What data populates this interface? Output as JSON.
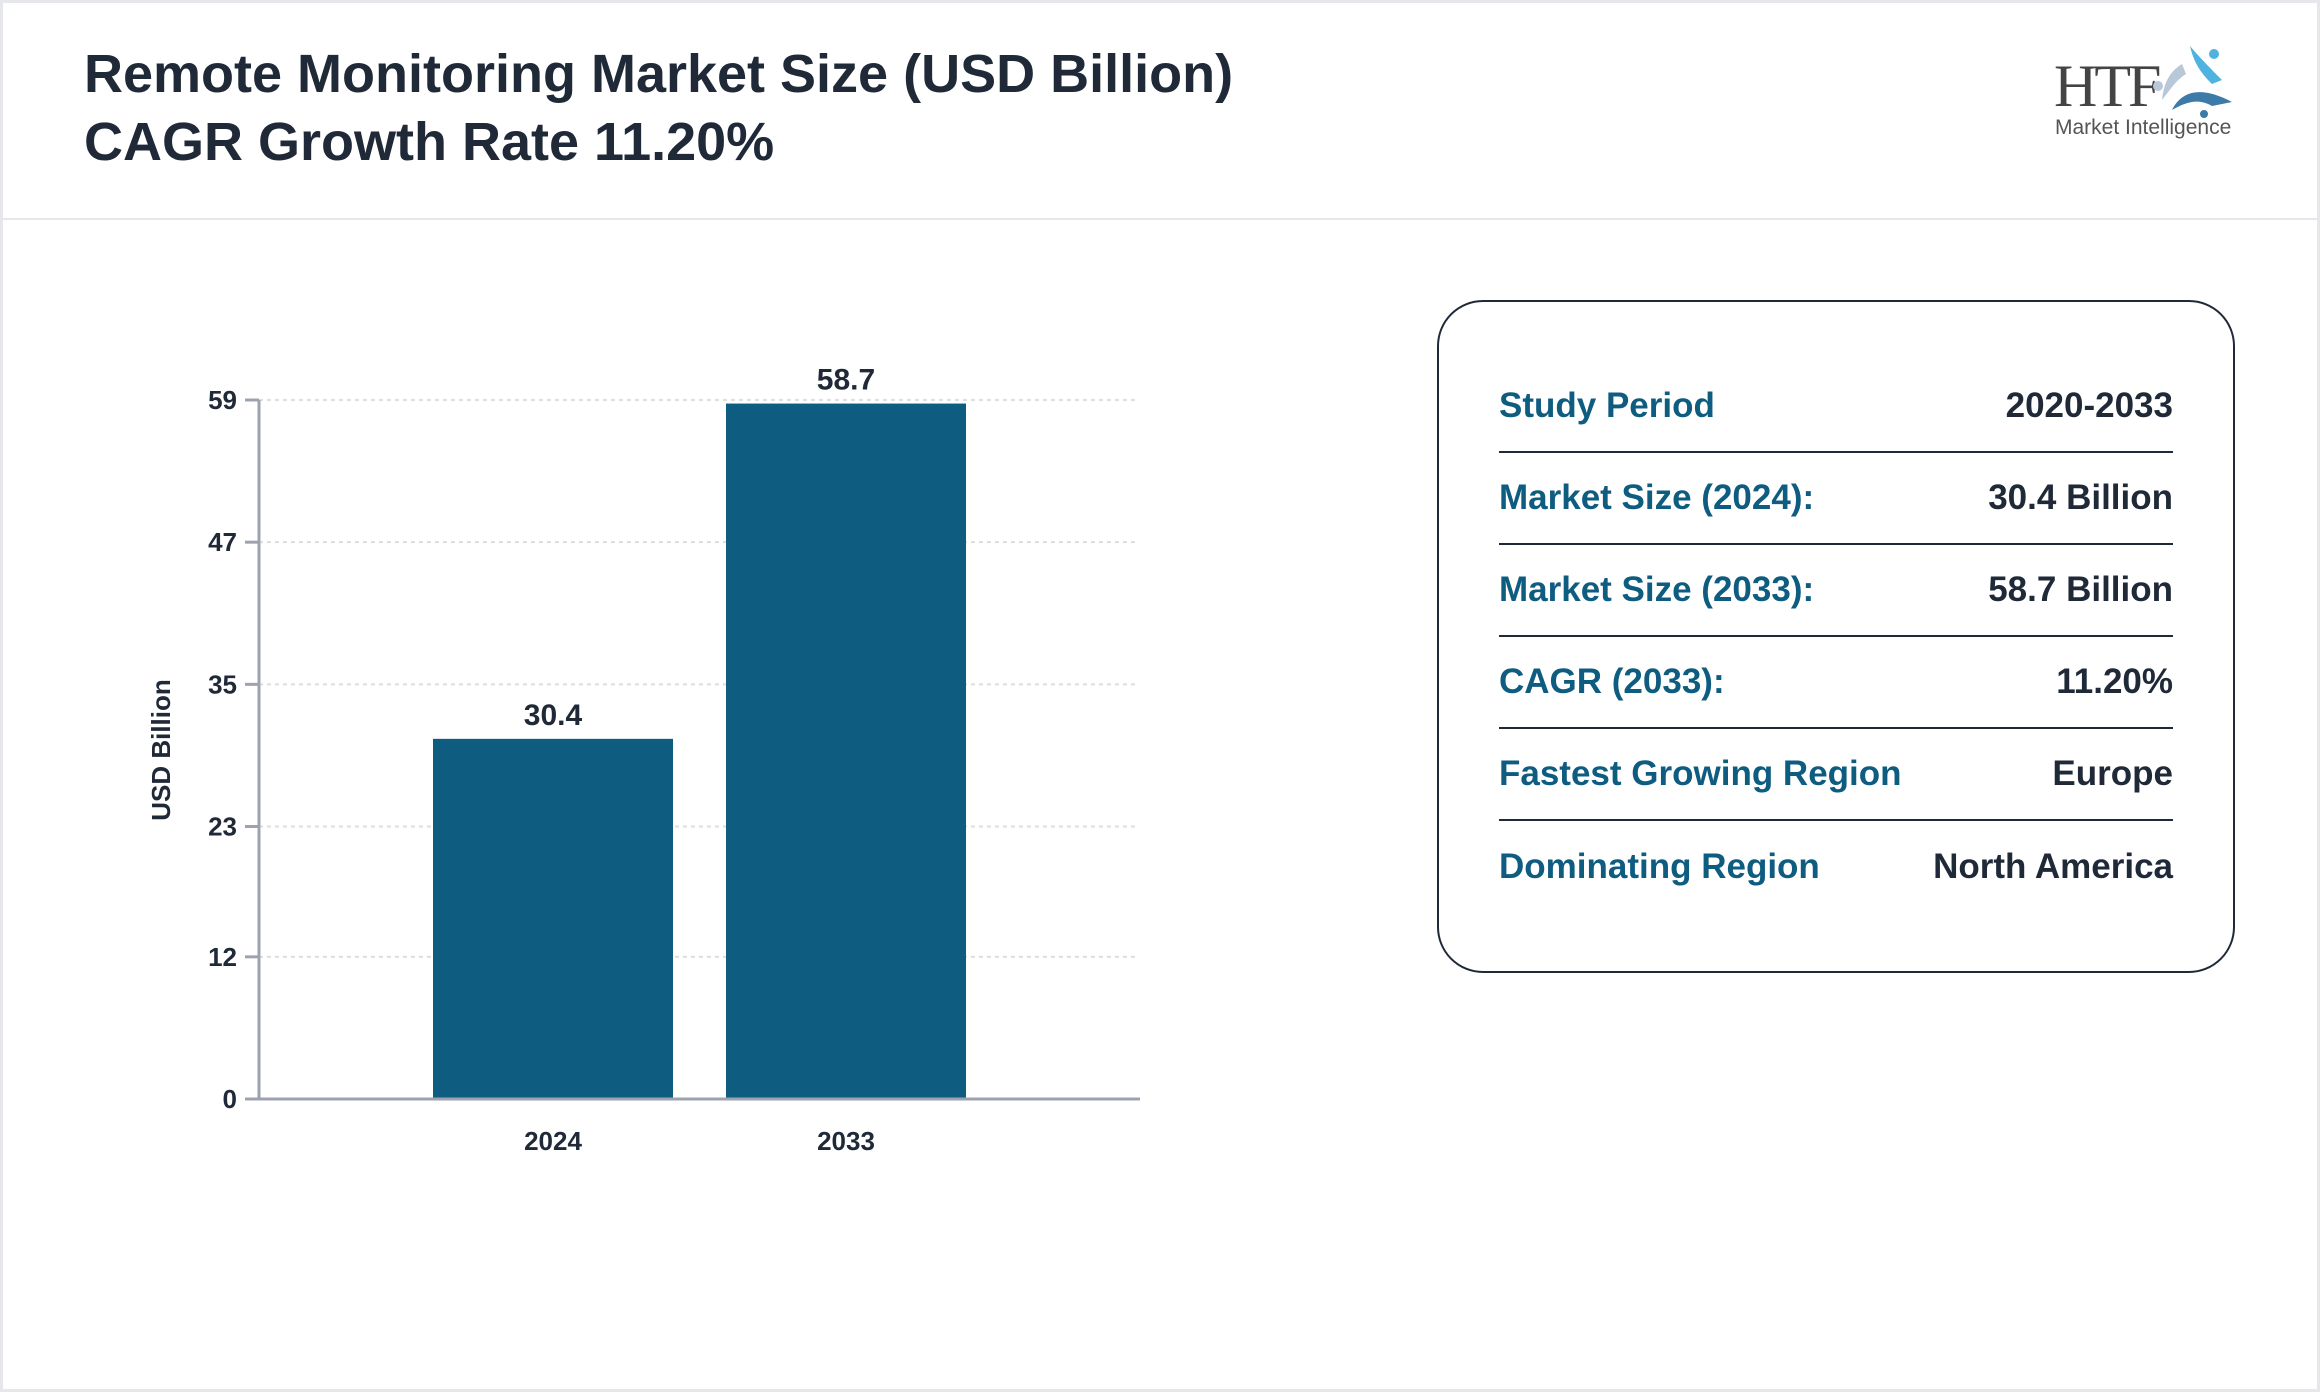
{
  "header": {
    "title_line1": "Remote Monitoring Market Size (USD Billion)",
    "title_line2": "CAGR Growth Rate 11.20%",
    "logo_text": "HTF",
    "logo_subtext": "Market Intelligence"
  },
  "chart_data": {
    "type": "bar",
    "categories": [
      "2024",
      "2033"
    ],
    "values": [
      30.4,
      58.7
    ],
    "data_labels": [
      "30.4",
      "58.7"
    ],
    "xlabel": "",
    "ylabel": "USD Billion",
    "ylim": [
      0,
      59
    ],
    "yticks": [
      0,
      12,
      23,
      35,
      47,
      59
    ],
    "grid": true,
    "bar_color": "#0e5c80"
  },
  "summary": {
    "rows": [
      {
        "label": "Study Period",
        "value": "2020-2033"
      },
      {
        "label": "Market Size (2024):",
        "value": "30.4 Billion"
      },
      {
        "label": "Market Size (2033):",
        "value": "58.7 Billion"
      },
      {
        "label": "CAGR (2033):",
        "value": "11.20%"
      },
      {
        "label": "Fastest Growing Region",
        "value": "Europe"
      },
      {
        "label": "Dominating Region",
        "value": "North America"
      }
    ]
  }
}
